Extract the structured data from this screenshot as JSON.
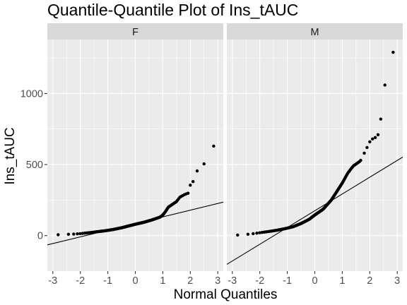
{
  "chart_data": {
    "type": "scatter",
    "title": "Quantile-Quantile Plot of Ins_tAUC",
    "xlabel": "Normal Quantiles",
    "ylabel": "Ins_tAUC",
    "xlim": [
      -3.2,
      3.2
    ],
    "ylim": [
      -250,
      1380
    ],
    "x_ticks": [
      -3,
      -2,
      -1,
      0,
      1,
      2,
      3
    ],
    "y_ticks": [
      0,
      500,
      1000
    ],
    "grid": true,
    "panels": [
      {
        "name": "F",
        "qq_line": {
          "intercept": 85,
          "slope": 47
        },
        "anchors": [
          [
            -2.9,
            5
          ],
          [
            -2.6,
            8
          ],
          [
            -2.3,
            10
          ],
          [
            -2.0,
            14
          ],
          [
            -1.7,
            20
          ],
          [
            -1.4,
            27
          ],
          [
            -1.1,
            34
          ],
          [
            -0.8,
            43
          ],
          [
            -0.5,
            55
          ],
          [
            -0.2,
            70
          ],
          [
            0.0,
            80
          ],
          [
            0.3,
            93
          ],
          [
            0.6,
            110
          ],
          [
            0.9,
            130
          ],
          [
            1.0,
            145
          ],
          [
            1.1,
            170
          ],
          [
            1.2,
            200
          ],
          [
            1.35,
            220
          ],
          [
            1.5,
            240
          ],
          [
            1.62,
            270
          ],
          [
            1.8,
            290
          ],
          [
            1.95,
            300
          ]
        ],
        "extreme_points": [
          [
            2.0,
            355
          ],
          [
            2.1,
            380
          ],
          [
            2.25,
            455
          ],
          [
            2.5,
            505
          ],
          [
            2.85,
            630
          ]
        ]
      },
      {
        "name": "M",
        "qq_line": {
          "intercept": 175,
          "slope": 118
        },
        "anchors": [
          [
            -2.9,
            3
          ],
          [
            -2.6,
            6
          ],
          [
            -2.3,
            12
          ],
          [
            -2.0,
            20
          ],
          [
            -1.7,
            28
          ],
          [
            -1.4,
            37
          ],
          [
            -1.1,
            48
          ],
          [
            -0.8,
            62
          ],
          [
            -0.5,
            85
          ],
          [
            -0.2,
            115
          ],
          [
            0.0,
            145
          ],
          [
            0.3,
            185
          ],
          [
            0.6,
            250
          ],
          [
            0.8,
            310
          ],
          [
            1.0,
            370
          ],
          [
            1.2,
            440
          ],
          [
            1.4,
            490
          ],
          [
            1.62,
            520
          ],
          [
            1.75,
            545
          ]
        ],
        "extreme_points": [
          [
            1.8,
            580
          ],
          [
            1.9,
            620
          ],
          [
            2.0,
            660
          ],
          [
            2.1,
            680
          ],
          [
            2.2,
            690
          ],
          [
            2.3,
            710
          ],
          [
            2.4,
            820
          ],
          [
            2.55,
            1060
          ],
          [
            2.85,
            1290
          ]
        ]
      }
    ]
  }
}
